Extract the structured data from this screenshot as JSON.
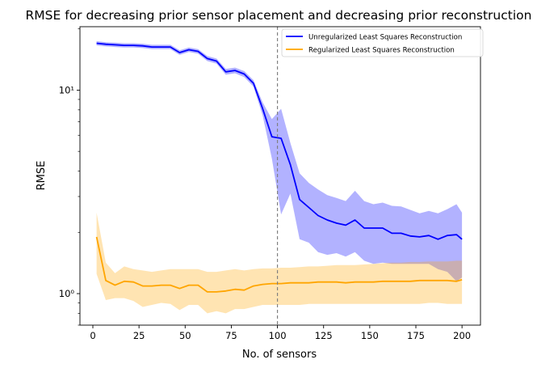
{
  "chart_data": {
    "type": "line",
    "title": "RMSE for decreasing prior sensor placement and decreasing prior reconstruction",
    "xlabel": "No. of sensors",
    "ylabel": "RMSE",
    "xlim": [
      -7,
      210
    ],
    "ylim": [
      0.7,
      20.5
    ],
    "yscale": "log",
    "grid": false,
    "legend_position": "top-right",
    "x_ticks": [
      {
        "value": 0,
        "label": "0"
      },
      {
        "value": 25,
        "label": "25"
      },
      {
        "value": 50,
        "label": "50"
      },
      {
        "value": 75,
        "label": "75"
      },
      {
        "value": 100,
        "label": "100"
      },
      {
        "value": 125,
        "label": "125"
      },
      {
        "value": 150,
        "label": "150"
      },
      {
        "value": 175,
        "label": "175"
      },
      {
        "value": 200,
        "label": "200"
      }
    ],
    "y_major_ticks": [
      {
        "value": 1,
        "label": "10⁰"
      },
      {
        "value": 10,
        "label": "10¹"
      }
    ],
    "y_minor_ticks": [
      0.7,
      0.8,
      0.9,
      2,
      3,
      4,
      5,
      6,
      7,
      8,
      9,
      20
    ],
    "vline": {
      "x": 100,
      "color": "#808080",
      "style": "dashed"
    },
    "x": [
      2,
      7,
      12,
      17,
      22,
      27,
      32,
      37,
      42,
      47,
      52,
      57,
      62,
      67,
      72,
      77,
      82,
      87,
      92,
      97,
      102,
      107,
      112,
      117,
      122,
      127,
      132,
      137,
      142,
      147,
      152,
      157,
      162,
      167,
      172,
      177,
      182,
      187,
      192,
      197,
      200
    ],
    "series": [
      {
        "name": "Unregularized Least Squares Reconstruction",
        "color": "#0000ff",
        "band_color": "#0000ff",
        "values": [
          17.0,
          16.8,
          16.7,
          16.6,
          16.6,
          16.5,
          16.3,
          16.3,
          16.3,
          15.3,
          15.8,
          15.5,
          14.3,
          13.9,
          12.3,
          12.5,
          12.0,
          10.8,
          8.1,
          5.9,
          5.8,
          4.3,
          2.9,
          2.65,
          2.42,
          2.3,
          2.22,
          2.17,
          2.3,
          2.1,
          2.1,
          2.1,
          1.98,
          1.98,
          1.92,
          1.9,
          1.93,
          1.85,
          1.93,
          1.95,
          1.85
        ],
        "upper": [
          17.4,
          17.2,
          17.1,
          17.0,
          17.0,
          16.9,
          16.7,
          16.7,
          16.7,
          15.7,
          16.2,
          15.9,
          14.7,
          14.3,
          12.7,
          12.9,
          12.4,
          11.2,
          8.7,
          7.2,
          8.1,
          5.5,
          3.9,
          3.5,
          3.25,
          3.05,
          2.95,
          2.85,
          3.2,
          2.85,
          2.75,
          2.8,
          2.7,
          2.68,
          2.58,
          2.48,
          2.55,
          2.48,
          2.6,
          2.75,
          2.5
        ],
        "lower": [
          16.6,
          16.4,
          16.3,
          16.2,
          16.2,
          16.1,
          15.9,
          15.9,
          15.9,
          14.9,
          15.4,
          15.1,
          13.9,
          13.5,
          11.9,
          12.1,
          11.6,
          10.4,
          7.5,
          4.6,
          2.45,
          3.1,
          1.85,
          1.78,
          1.6,
          1.55,
          1.58,
          1.52,
          1.6,
          1.45,
          1.4,
          1.42,
          1.4,
          1.4,
          1.4,
          1.4,
          1.4,
          1.32,
          1.28,
          1.15,
          1.2
        ]
      },
      {
        "name": "Regularized Least Squares Reconstruction",
        "color": "#ffa500",
        "band_color": "#ffa500",
        "values": [
          1.9,
          1.16,
          1.1,
          1.15,
          1.14,
          1.09,
          1.09,
          1.1,
          1.1,
          1.06,
          1.1,
          1.1,
          1.02,
          1.02,
          1.03,
          1.05,
          1.04,
          1.09,
          1.11,
          1.12,
          1.12,
          1.13,
          1.13,
          1.13,
          1.14,
          1.14,
          1.14,
          1.13,
          1.14,
          1.14,
          1.14,
          1.15,
          1.15,
          1.15,
          1.15,
          1.16,
          1.16,
          1.16,
          1.16,
          1.15,
          1.17
        ],
        "upper": [
          2.5,
          1.42,
          1.26,
          1.36,
          1.32,
          1.3,
          1.28,
          1.3,
          1.32,
          1.32,
          1.32,
          1.32,
          1.28,
          1.28,
          1.3,
          1.32,
          1.3,
          1.32,
          1.33,
          1.33,
          1.34,
          1.34,
          1.35,
          1.36,
          1.36,
          1.37,
          1.38,
          1.38,
          1.38,
          1.39,
          1.4,
          1.41,
          1.42,
          1.42,
          1.43,
          1.43,
          1.44,
          1.44,
          1.44,
          1.45,
          1.45
        ],
        "lower": [
          1.25,
          0.93,
          0.95,
          0.95,
          0.92,
          0.86,
          0.88,
          0.9,
          0.89,
          0.83,
          0.88,
          0.88,
          0.8,
          0.82,
          0.8,
          0.84,
          0.84,
          0.86,
          0.88,
          0.88,
          0.88,
          0.88,
          0.88,
          0.89,
          0.89,
          0.89,
          0.89,
          0.89,
          0.89,
          0.89,
          0.89,
          0.89,
          0.89,
          0.89,
          0.89,
          0.89,
          0.9,
          0.9,
          0.89,
          0.89,
          0.89
        ]
      }
    ]
  }
}
